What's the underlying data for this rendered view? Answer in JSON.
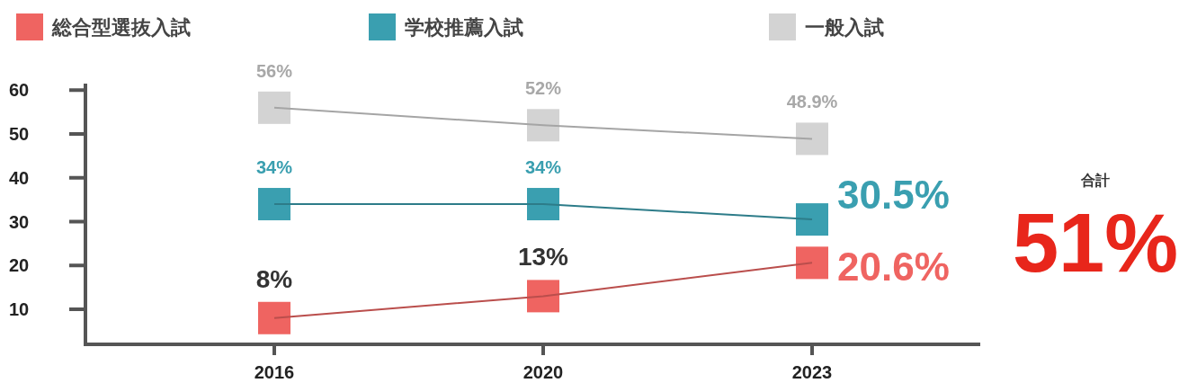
{
  "chart_data": {
    "type": "line",
    "categories": [
      "2016",
      "2020",
      "2023"
    ],
    "series": [
      {
        "name": "総合型選抜入試",
        "color": "#ef6461",
        "values": [
          8,
          13,
          20.6
        ],
        "value_labels": [
          "8%",
          "13%",
          "20.6%"
        ]
      },
      {
        "name": "学校推薦入試",
        "color": "#3a9fb0",
        "values": [
          34,
          34,
          30.5
        ],
        "value_labels": [
          "34%",
          "34%",
          "30.5%"
        ]
      },
      {
        "name": "一般入試",
        "color": "#d3d3d3",
        "values": [
          56,
          52,
          48.9
        ],
        "value_labels": [
          "56%",
          "52%",
          "48.9%"
        ]
      }
    ],
    "ylim": [
      2,
      61.5
    ],
    "yticks": [
      10,
      20,
      30,
      40,
      50,
      60
    ],
    "marker": "square",
    "line_style": "solid",
    "grid": false,
    "legend": "top",
    "annotations": [
      "合計",
      "51%"
    ]
  }
}
